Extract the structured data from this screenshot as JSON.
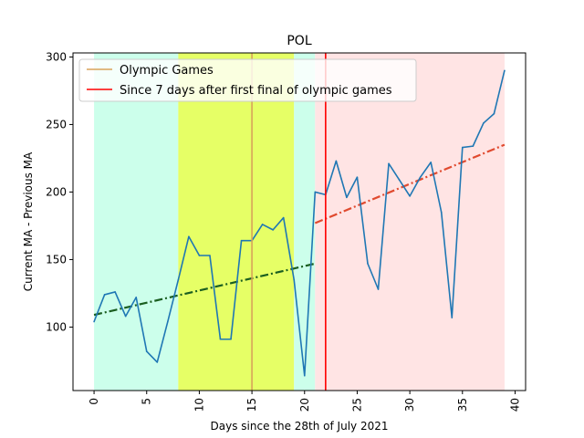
{
  "chart_data": {
    "type": "line",
    "title": "POL",
    "xlabel": "Days since the 28th of July 2021",
    "ylabel": "Current MA - Previous MA",
    "xlim": [
      -2,
      41
    ],
    "ylim": [
      53,
      303
    ],
    "grid": false,
    "legend_position": "top-left",
    "xticks": [
      0,
      5,
      10,
      15,
      20,
      25,
      30,
      35,
      40
    ],
    "yticks": [
      100,
      150,
      200,
      250,
      300
    ],
    "shaded_regions": [
      {
        "x0": 0,
        "x1": 8,
        "color": "#ccffeb"
      },
      {
        "x0": 8,
        "x1": 19,
        "color": "#e6ff66"
      },
      {
        "x0": 19,
        "x1": 21,
        "color": "#ccffeb"
      },
      {
        "x0": 21,
        "x1": 39,
        "color": "#ffe4e4"
      }
    ],
    "series": [
      {
        "kind": "line",
        "color": "#1f77b4",
        "x": [
          0,
          1,
          2,
          3,
          4,
          5,
          6,
          7,
          8,
          9,
          10,
          11,
          12,
          13,
          14,
          15,
          16,
          17,
          18,
          19,
          20,
          21,
          22,
          23,
          24,
          25,
          26,
          27,
          28,
          29,
          30,
          31,
          32,
          33,
          34,
          35,
          36,
          37,
          38,
          39
        ],
        "y": [
          104,
          124,
          126,
          108,
          122,
          82,
          74,
          104,
          135,
          167,
          153,
          153,
          91,
          91,
          164,
          164,
          176,
          172,
          181,
          135,
          64,
          200,
          198,
          223,
          196,
          211,
          147,
          128,
          221,
          209,
          197,
          211,
          222,
          185,
          107,
          233,
          234,
          251,
          258,
          290
        ]
      },
      {
        "kind": "trend",
        "color": "#1a5e20",
        "x": [
          0,
          21
        ],
        "y": [
          109,
          147
        ]
      },
      {
        "kind": "trend",
        "color": "#e04a2f",
        "x": [
          21,
          39
        ],
        "y": [
          177,
          235
        ]
      },
      {
        "name": "Olympic Games",
        "kind": "vline",
        "color": "#d9a45a",
        "x": 15
      },
      {
        "name": "Since 7 days after first final of olympic games",
        "kind": "vline",
        "color": "#ff0000",
        "x": 22
      }
    ]
  }
}
